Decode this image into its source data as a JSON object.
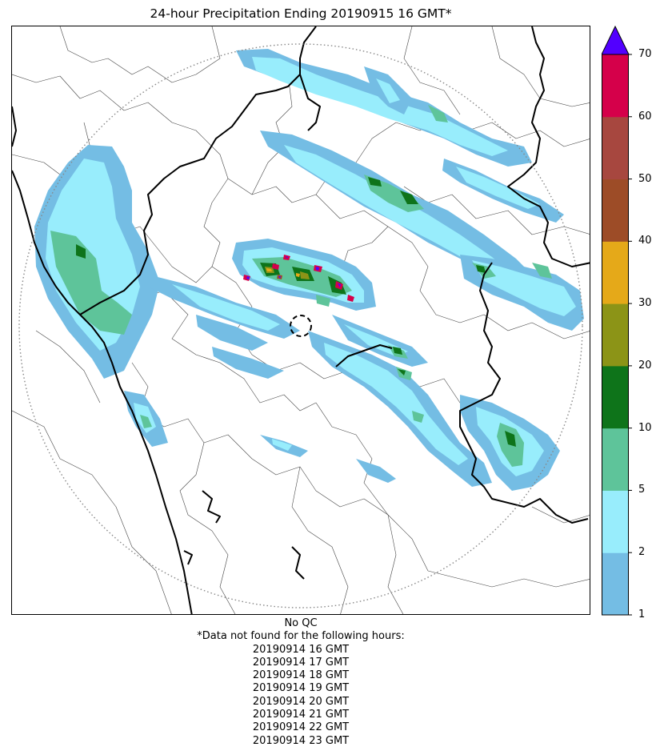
{
  "title": "24-hour Precipitation Ending 20190915 16 GMT*",
  "colorbar": {
    "ticks": [
      "1",
      "2",
      "5",
      "10",
      "20",
      "30",
      "40",
      "50",
      "60",
      "70"
    ],
    "bins": [
      {
        "from": 1,
        "to": 2,
        "color": "#74BDE4"
      },
      {
        "from": 2,
        "to": 5,
        "color": "#98EDFC"
      },
      {
        "from": 5,
        "to": 10,
        "color": "#5EC49A"
      },
      {
        "from": 10,
        "to": 20,
        "color": "#0E741A"
      },
      {
        "from": 20,
        "to": 30,
        "color": "#8C9417"
      },
      {
        "from": 30,
        "to": 40,
        "color": "#E5A919"
      },
      {
        "from": 40,
        "to": 50,
        "color": "#9D4C27"
      },
      {
        "from": 50,
        "to": 60,
        "color": "#A7473F"
      },
      {
        "from": 60,
        "to": 70,
        "color": "#D5004A"
      }
    ],
    "over_color": "#5200FF"
  },
  "map": {
    "radar_range_ring": "dotted gray circle",
    "radar_site_marker": "dashed black circle"
  },
  "footer": {
    "qc": "No QC",
    "note": "*Data not found for the following hours:",
    "missing_hours": [
      "20190914 16 GMT",
      "20190914 17 GMT",
      "20190914 18 GMT",
      "20190914 19 GMT",
      "20190914 20 GMT",
      "20190914 21 GMT",
      "20190914 22 GMT",
      "20190914 23 GMT"
    ]
  }
}
